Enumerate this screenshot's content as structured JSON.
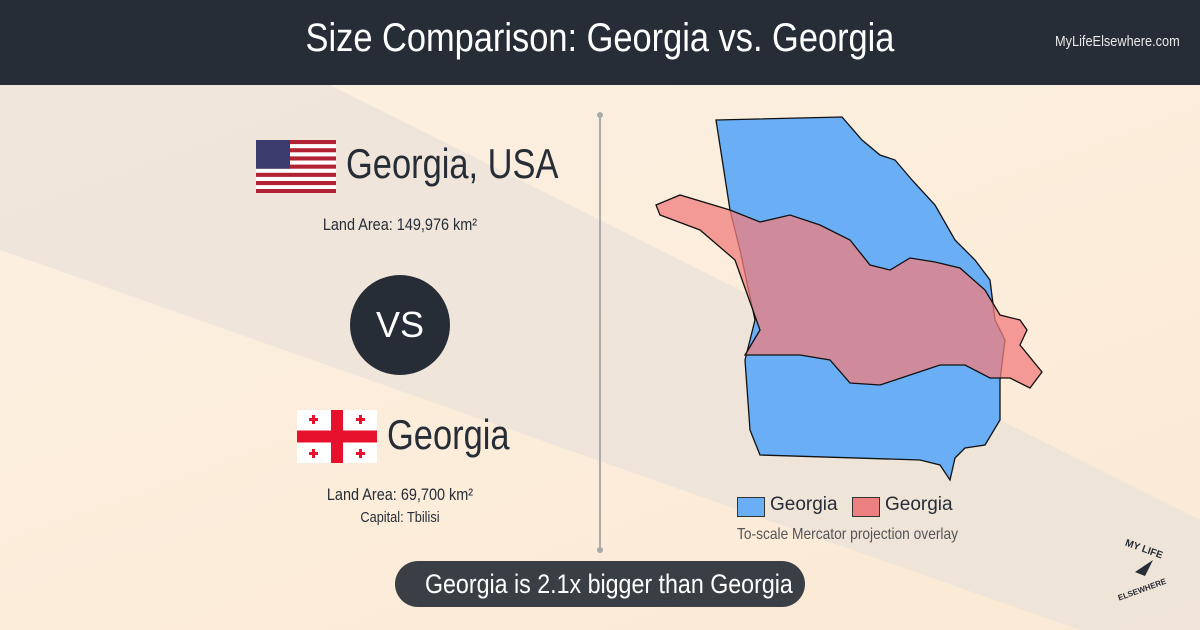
{
  "header": {
    "title": "Size Comparison: Georgia vs. Georgia",
    "site": "MyLifeElsewhere.com"
  },
  "first": {
    "name": "Georgia, USA",
    "area_label": "Land Area:",
    "area": "149,976 km²"
  },
  "versus": "VS",
  "second": {
    "name": "Georgia",
    "area_label": "Land Area:",
    "area": "69,700 km²",
    "capital_label": "Capital:",
    "capital": "Tbilisi"
  },
  "map": {
    "legend": [
      "Georgia",
      "Georgia"
    ],
    "caption": "To-scale Mercator projection overlay"
  },
  "statement": "Georgia is 2.1x bigger than Georgia",
  "logo": {
    "top": "MY LIFE",
    "bottom": "ELSEWHERE"
  }
}
